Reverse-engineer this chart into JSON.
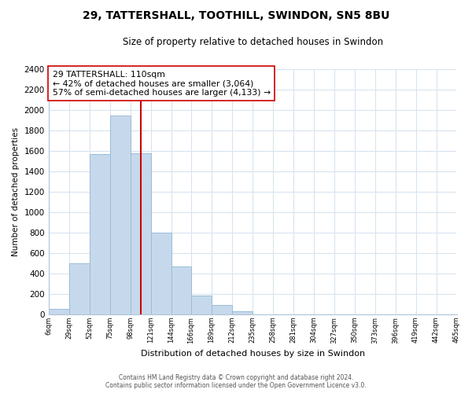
{
  "title": "29, TATTERSHALL, TOOTHILL, SWINDON, SN5 8BU",
  "subtitle": "Size of property relative to detached houses in Swindon",
  "xlabel": "Distribution of detached houses by size in Swindon",
  "ylabel": "Number of detached properties",
  "footer_line1": "Contains HM Land Registry data © Crown copyright and database right 2024.",
  "footer_line2": "Contains public sector information licensed under the Open Government Licence v3.0.",
  "bin_edges": [
    6,
    29,
    52,
    75,
    98,
    121,
    144,
    166,
    189,
    212,
    235,
    258,
    281,
    304,
    327,
    350,
    373,
    396,
    419,
    442,
    465
  ],
  "bin_counts": [
    50,
    500,
    1570,
    1950,
    1580,
    800,
    470,
    185,
    90,
    30,
    0,
    0,
    0,
    0,
    0,
    0,
    0,
    0,
    0,
    0
  ],
  "bar_color": "#c6d9ec",
  "bar_edge_color": "#9abcd6",
  "property_value": 110,
  "property_line_color": "#cc0000",
  "annotation_line1": "29 TATTERSHALL: 110sqm",
  "annotation_line2": "← 42% of detached houses are smaller (3,064)",
  "annotation_line3": "57% of semi-detached houses are larger (4,133) →",
  "annotation_box_color": "#ffffff",
  "annotation_box_edge_color": "#cc0000",
  "tick_labels": [
    "6sqm",
    "29sqm",
    "52sqm",
    "75sqm",
    "98sqm",
    "121sqm",
    "144sqm",
    "166sqm",
    "189sqm",
    "212sqm",
    "235sqm",
    "258sqm",
    "281sqm",
    "304sqm",
    "327sqm",
    "350sqm",
    "373sqm",
    "396sqm",
    "419sqm",
    "442sqm",
    "465sqm"
  ],
  "ylim": [
    0,
    2400
  ],
  "yticks": [
    0,
    200,
    400,
    600,
    800,
    1000,
    1200,
    1400,
    1600,
    1800,
    2000,
    2200,
    2400
  ],
  "background_color": "#ffffff",
  "grid_color": "#d8e4f0"
}
